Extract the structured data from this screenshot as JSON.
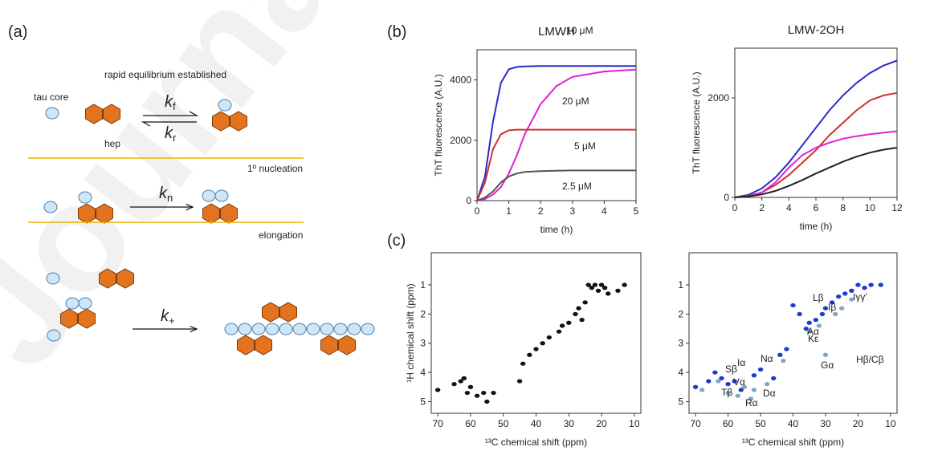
{
  "watermark": "Journal",
  "panel_labels": [
    "(a)",
    "(b)",
    "(c)"
  ],
  "diagram": {
    "title": "rapid equilibrium established",
    "tau_core": "tau core",
    "hep": "hep",
    "nucleation": "1º nucleation",
    "elongation": "elongation",
    "k_f": {
      "symbol": "k",
      "sub": "f"
    },
    "k_r": {
      "symbol": "k",
      "sub": "r"
    },
    "k_n": {
      "symbol": "k",
      "sub": "n"
    },
    "k_plus": {
      "symbol": "k",
      "sub": "+"
    }
  },
  "chart_data": [
    {
      "type": "line",
      "title": "LMWH",
      "xlabel": "time (h)",
      "ylabel": "ThT fluorescence (A.U.)",
      "x": [
        0,
        0.25,
        0.5,
        0.75,
        1,
        1.25,
        1.5,
        2,
        2.5,
        3,
        4,
        5
      ],
      "xlim": [
        0,
        5
      ],
      "xticks": [
        0,
        1,
        2,
        3,
        4,
        5
      ],
      "ylim": [
        0,
        5000
      ],
      "yticks": [
        0,
        2000,
        4000
      ],
      "series": [
        {
          "name": "10 μM",
          "color": "#2a2ac8",
          "values": [
            0,
            800,
            2600,
            3900,
            4350,
            4430,
            4450,
            4460,
            4460,
            4460,
            4460,
            4460
          ]
        },
        {
          "name": "20 μM",
          "color": "#e020d0",
          "values": [
            0,
            50,
            200,
            450,
            900,
            1500,
            2200,
            3200,
            3800,
            4100,
            4280,
            4340
          ]
        },
        {
          "name": "5 μM",
          "color": "#d03030",
          "values": [
            0,
            600,
            1700,
            2200,
            2330,
            2350,
            2350,
            2350,
            2350,
            2350,
            2350,
            2350
          ]
        },
        {
          "name": "2.5 μM",
          "color": "#555555",
          "values": [
            0,
            100,
            300,
            600,
            800,
            900,
            950,
            980,
            990,
            1000,
            1000,
            1000
          ]
        }
      ]
    },
    {
      "type": "line",
      "title": "LMW-2OH",
      "xlabel": "time (h)",
      "ylabel": "ThT fluorescence (A.U.)",
      "x": [
        0,
        1,
        2,
        3,
        4,
        5,
        6,
        7,
        8,
        9,
        10,
        11,
        12
      ],
      "xlim": [
        0,
        12
      ],
      "xticks": [
        0,
        2,
        4,
        6,
        8,
        10,
        12
      ],
      "ylim": [
        0,
        3000
      ],
      "yticks": [
        0,
        2000
      ],
      "series": [
        {
          "color": "#2a2ac8",
          "values": [
            0,
            50,
            180,
            400,
            700,
            1050,
            1400,
            1750,
            2050,
            2300,
            2500,
            2650,
            2750
          ]
        },
        {
          "color": "#d03030",
          "values": [
            0,
            30,
            100,
            250,
            450,
            700,
            950,
            1250,
            1500,
            1750,
            1950,
            2050,
            2100
          ]
        },
        {
          "color": "#e020d0",
          "values": [
            0,
            20,
            100,
            300,
            600,
            850,
            1000,
            1100,
            1180,
            1230,
            1270,
            1300,
            1330
          ]
        },
        {
          "color": "#222222",
          "values": [
            0,
            20,
            60,
            130,
            230,
            350,
            480,
            600,
            720,
            820,
            900,
            960,
            1000
          ]
        }
      ]
    },
    {
      "type": "scatter",
      "xlabel": "¹³C chemical shift (ppm)",
      "ylabel": "¹H chemical shift (ppm)",
      "xlim": [
        72,
        8
      ],
      "xticks": [
        70,
        60,
        50,
        40,
        30,
        20,
        10
      ],
      "ylim": [
        5.4,
        -0.1
      ],
      "yticks": [
        1,
        2,
        3,
        4,
        5
      ],
      "series": [
        {
          "color": "#111111",
          "x": [
            70,
            65,
            63,
            62,
            61,
            60,
            58,
            56,
            55,
            53,
            45,
            44,
            42,
            40,
            38,
            36,
            33,
            32,
            30,
            28,
            27,
            26,
            25,
            24,
            23,
            22,
            21,
            20,
            19,
            18,
            15,
            13
          ],
          "y": [
            4.6,
            4.4,
            4.3,
            4.2,
            4.7,
            4.5,
            4.8,
            4.7,
            5.0,
            4.7,
            4.3,
            3.7,
            3.4,
            3.2,
            3.0,
            2.8,
            2.6,
            2.4,
            2.3,
            2.0,
            1.8,
            2.2,
            1.6,
            1.0,
            1.1,
            1.0,
            1.2,
            1.0,
            1.1,
            1.3,
            1.2,
            1.0
          ]
        }
      ]
    },
    {
      "type": "scatter",
      "xlabel": "¹³C chemical shift (ppm)",
      "xlim": [
        72,
        8
      ],
      "xticks": [
        70,
        60,
        50,
        40,
        30,
        20,
        10
      ],
      "ylim": [
        5.4,
        -0.1
      ],
      "yticks": [
        1,
        2,
        3,
        4,
        5
      ],
      "series": [
        {
          "color": "#1a3ccc",
          "x": [
            70,
            66,
            64,
            62,
            60,
            58,
            56,
            52,
            50,
            46,
            44,
            42,
            40,
            38,
            36,
            35,
            33,
            31,
            30,
            28,
            26,
            24,
            22,
            20,
            18,
            16,
            13
          ],
          "y": [
            4.5,
            4.3,
            4.0,
            4.2,
            4.4,
            4.3,
            4.6,
            4.1,
            3.9,
            4.2,
            3.4,
            3.2,
            1.7,
            2.0,
            2.5,
            2.3,
            2.2,
            2.0,
            1.8,
            1.6,
            1.4,
            1.3,
            1.2,
            1.0,
            1.1,
            1.0,
            1.0
          ]
        },
        {
          "color": "#7fa6c8",
          "x": [
            68,
            63,
            60,
            57,
            55,
            53,
            52,
            48,
            43,
            35,
            32,
            30,
            27,
            25,
            22
          ],
          "y": [
            4.6,
            4.3,
            4.7,
            4.8,
            4.5,
            4.9,
            4.6,
            4.4,
            3.6,
            2.6,
            2.4,
            3.4,
            2.0,
            1.8,
            1.5
          ]
        }
      ],
      "annotations": [
        "Iγγ'",
        "Lβ",
        "Iβ",
        "Aα",
        "Kε",
        "Gα",
        "Hβ/Cβ",
        "Nα",
        "Dα",
        "Rα",
        "Sβ",
        "Iα",
        "Vα",
        "Tβ"
      ]
    }
  ]
}
